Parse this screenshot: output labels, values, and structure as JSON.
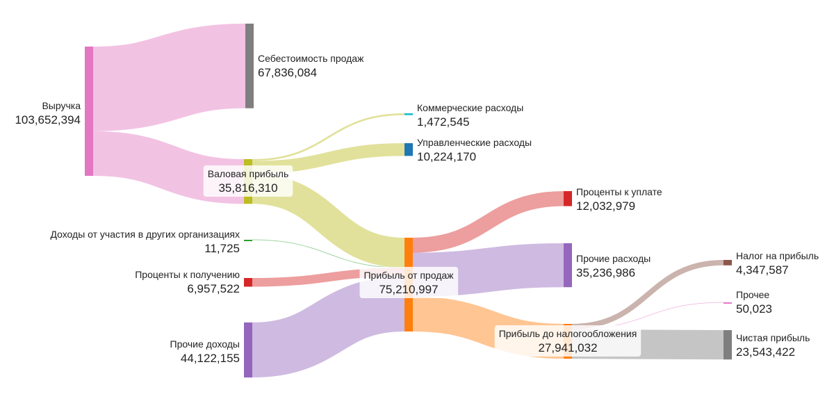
{
  "chart_data": {
    "type": "sankey",
    "title": "",
    "nodes": [
      {
        "id": "revenue",
        "name": "Выручка",
        "value": 103652394,
        "value_label": "103,652,394",
        "color": "#e377c2"
      },
      {
        "id": "cogs",
        "name": "Себестоимость продаж",
        "value": 67836084,
        "value_label": "67,836,084",
        "color": "#7f7f7f"
      },
      {
        "id": "gross",
        "name": "Валовая прибыль",
        "value": 35816310,
        "value_label": "35,816,310",
        "color": "#bcbd22"
      },
      {
        "id": "commercial",
        "name": "Коммерческие расходы",
        "value": 1472545,
        "value_label": "1,472,545",
        "color": "#17becf"
      },
      {
        "id": "admin",
        "name": "Управленческие расходы",
        "value": 10224170,
        "value_label": "10,224,170",
        "color": "#1f77b4"
      },
      {
        "id": "participation",
        "name": "Доходы от участия в других организациях",
        "value": 11725,
        "value_label": "11,725",
        "color": "#2ca02c"
      },
      {
        "id": "int_income",
        "name": "Проценты к получению",
        "value": 6957522,
        "value_label": "6,957,522",
        "color": "#d62728"
      },
      {
        "id": "other_income",
        "name": "Прочие доходы",
        "value": 44122155,
        "value_label": "44,122,155",
        "color": "#9467bd"
      },
      {
        "id": "op_profit",
        "name": "Прибыль от продаж",
        "value": 75210997,
        "value_label": "75,210,997",
        "color": "#ff7f0e"
      },
      {
        "id": "int_expense",
        "name": "Проценты к уплате",
        "value": 12032979,
        "value_label": "12,032,979",
        "color": "#d62728"
      },
      {
        "id": "other_exp",
        "name": "Прочие расходы",
        "value": 35236986,
        "value_label": "35,236,986",
        "color": "#9467bd"
      },
      {
        "id": "pretax",
        "name": "Прибыль до налогообложения",
        "value": 27941032,
        "value_label": "27,941,032",
        "color": "#ff7f0e"
      },
      {
        "id": "tax",
        "name": "Налог на прибыль",
        "value": 4347587,
        "value_label": "4,347,587",
        "color": "#8c564b"
      },
      {
        "id": "other",
        "name": "Прочее",
        "value": 50023,
        "value_label": "50,023",
        "color": "#e377c2"
      },
      {
        "id": "net",
        "name": "Чистая прибыль",
        "value": 23543422,
        "value_label": "23,543,422",
        "color": "#7f7f7f"
      }
    ],
    "links": [
      {
        "source": "revenue",
        "target": "cogs",
        "value": 67836084,
        "color": "#e377c2"
      },
      {
        "source": "revenue",
        "target": "gross",
        "value": 35816310,
        "color": "#e377c2"
      },
      {
        "source": "gross",
        "target": "commercial",
        "value": 1472545,
        "color": "#bcbd22"
      },
      {
        "source": "gross",
        "target": "admin",
        "value": 10224170,
        "color": "#bcbd22"
      },
      {
        "source": "gross",
        "target": "op_profit",
        "value": 24119595,
        "color": "#bcbd22"
      },
      {
        "source": "participation",
        "target": "op_profit",
        "value": 11725,
        "color": "#2ca02c"
      },
      {
        "source": "int_income",
        "target": "op_profit",
        "value": 6957522,
        "color": "#d62728"
      },
      {
        "source": "other_income",
        "target": "op_profit",
        "value": 44122155,
        "color": "#9467bd"
      },
      {
        "source": "op_profit",
        "target": "int_expense",
        "value": 12032979,
        "color": "#d62728"
      },
      {
        "source": "op_profit",
        "target": "other_exp",
        "value": 35236986,
        "color": "#9467bd"
      },
      {
        "source": "op_profit",
        "target": "pretax",
        "value": 27941032,
        "color": "#ff7f0e"
      },
      {
        "source": "pretax",
        "target": "tax",
        "value": 4347587,
        "color": "#8c564b"
      },
      {
        "source": "pretax",
        "target": "other",
        "value": 50023,
        "color": "#e377c2"
      },
      {
        "source": "pretax",
        "target": "net",
        "value": 23543422,
        "color": "#7f7f7f"
      }
    ]
  }
}
